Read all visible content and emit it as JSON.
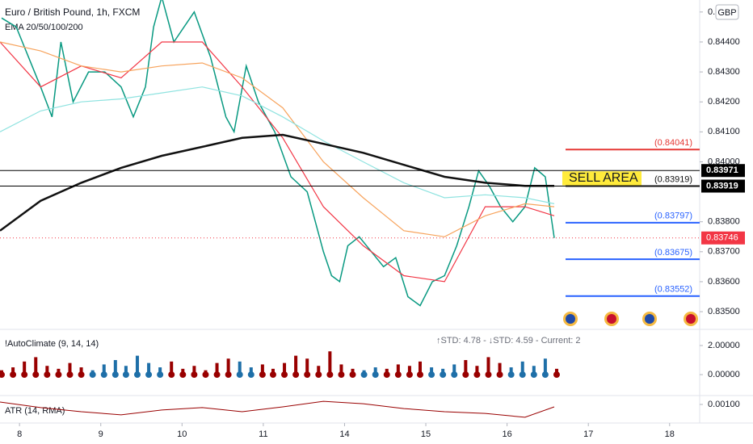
{
  "chart_data": [
    {
      "type": "line",
      "title": "Euro / British Pound, 1h, FXCM",
      "subtitle": "EMA 20/50/100/200",
      "currency": "GBP",
      "xlim": [
        -0.24,
        8.37
      ],
      "ylim": [
        0.83449,
        0.8454
      ],
      "yticks": [
        {
          "value": 0.845,
          "label": "0."
        },
        {
          "value": 0.844,
          "label": "0.84400"
        },
        {
          "value": 0.843,
          "label": "0.84300"
        },
        {
          "value": 0.842,
          "label": "0.84200"
        },
        {
          "value": 0.841,
          "label": "0.84100"
        },
        {
          "value": 0.84,
          "label": "0.84000"
        },
        {
          "value": 0.838,
          "label": "0.83800"
        },
        {
          "value": 0.837,
          "label": "0.83700"
        },
        {
          "value": 0.836,
          "label": "0.83600"
        },
        {
          "value": 0.835,
          "label": "0.83500"
        }
      ],
      "series": [
        {
          "color": "#089981",
          "x": [
            -0.22,
            -0.04,
            0.26,
            0.4,
            0.51,
            0.66,
            0.85,
            1.05,
            1.25,
            1.4,
            1.55,
            1.65,
            1.75,
            1.9,
            2.15,
            2.35,
            2.54,
            2.64,
            2.79,
            2.94,
            3.14,
            3.34,
            3.54,
            3.64,
            3.74,
            3.84,
            3.94,
            4.04,
            4.18,
            4.33,
            4.48,
            4.63,
            4.78,
            4.93,
            5.08,
            5.23,
            5.38,
            5.53,
            5.65,
            5.78,
            5.92,
            6.07,
            6.22,
            6.34,
            6.47,
            6.58
          ],
          "values": [
            0.8448,
            0.8445,
            0.8425,
            0.8415,
            0.844,
            0.842,
            0.843,
            0.843,
            0.8425,
            0.8415,
            0.8425,
            0.8445,
            0.8455,
            0.844,
            0.845,
            0.8435,
            0.8415,
            0.841,
            0.8432,
            0.842,
            0.841,
            0.8395,
            0.839,
            0.838,
            0.837,
            0.8362,
            0.836,
            0.8372,
            0.8375,
            0.837,
            0.8365,
            0.8368,
            0.8355,
            0.8352,
            0.836,
            0.8362,
            0.8372,
            0.8385,
            0.8397,
            0.8392,
            0.8385,
            0.838,
            0.8385,
            0.8398,
            0.8395,
            0.83746
          ]
        },
        {
          "color": "#f23645",
          "x": [
            -0.24,
            0.26,
            0.76,
            1.25,
            1.75,
            2.25,
            2.74,
            3.24,
            3.74,
            4.23,
            4.73,
            5.23,
            5.73,
            6.22,
            6.58
          ],
          "values": [
            0.844,
            0.8425,
            0.8432,
            0.8428,
            0.844,
            0.844,
            0.8425,
            0.8408,
            0.8385,
            0.8372,
            0.8362,
            0.836,
            0.8385,
            0.8385,
            0.8382
          ]
        },
        {
          "color": "#f7a35c",
          "x": [
            -0.24,
            0.26,
            0.76,
            1.25,
            1.75,
            2.25,
            2.74,
            3.24,
            3.74,
            4.23,
            4.73,
            5.23,
            5.73,
            6.22,
            6.58
          ],
          "values": [
            0.844,
            0.8437,
            0.8432,
            0.843,
            0.8432,
            0.8433,
            0.8428,
            0.8418,
            0.84,
            0.8388,
            0.8377,
            0.8375,
            0.8382,
            0.8386,
            0.8385
          ]
        },
        {
          "color": "#8fe3e0",
          "x": [
            -0.24,
            0.26,
            0.76,
            1.25,
            1.75,
            2.25,
            2.74,
            3.24,
            3.74,
            4.23,
            4.73,
            5.23,
            5.73,
            6.22,
            6.58
          ],
          "values": [
            0.841,
            0.8417,
            0.842,
            0.8421,
            0.8423,
            0.8425,
            0.8422,
            0.8415,
            0.8407,
            0.84,
            0.8393,
            0.8388,
            0.8389,
            0.8388,
            0.8386
          ]
        },
        {
          "color": "#111111",
          "x": [
            -0.24,
            0.26,
            0.76,
            1.25,
            1.75,
            2.25,
            2.74,
            3.24,
            3.74,
            4.23,
            4.73,
            5.23,
            5.73,
            6.22,
            6.58
          ],
          "values": [
            0.8377,
            0.8387,
            0.8393,
            0.8398,
            0.8402,
            0.8405,
            0.8408,
            0.8409,
            0.8406,
            0.8403,
            0.8399,
            0.8395,
            0.8393,
            0.8392,
            0.8392
          ]
        }
      ],
      "hlines": [
        0.83971,
        0.83919
      ],
      "last_price": 0.83746,
      "levels": [
        {
          "value": 0.84041,
          "label": "(0.84041)",
          "color": "#e53935"
        },
        {
          "value": 0.83919,
          "label": "(0.83919)",
          "color": "#111111"
        },
        {
          "value": 0.83797,
          "label": "(0.83797)",
          "color": "#2962ff"
        },
        {
          "value": 0.83675,
          "label": "(0.83675)",
          "color": "#2962ff"
        },
        {
          "value": 0.83552,
          "label": "(0.83552)",
          "color": "#2962ff"
        }
      ],
      "annotation": "SELL AREA"
    },
    {
      "type": "bar",
      "title": "!AutoClimate (9, 14, 14)",
      "subtitle": "↑STD: 4.78 - ↓STD: 4.59 - Current: 2",
      "xlim": [
        -0.24,
        8.37
      ],
      "ylim": [
        -1.44,
        3.0
      ],
      "yticks": [
        {
          "value": 2,
          "label": "2.00000"
        },
        {
          "value": 0,
          "label": "0.00000"
        }
      ],
      "x": [
        -0.22,
        -0.08,
        0.06,
        0.2,
        0.34,
        0.48,
        0.62,
        0.76,
        0.9,
        1.04,
        1.18,
        1.31,
        1.45,
        1.59,
        1.73,
        1.87,
        2.01,
        2.15,
        2.29,
        2.43,
        2.57,
        2.71,
        2.85,
        2.99,
        3.12,
        3.26,
        3.4,
        3.54,
        3.68,
        3.82,
        3.96,
        4.1,
        4.24,
        4.38,
        4.52,
        4.66,
        4.8,
        4.93,
        5.07,
        5.21,
        5.35,
        5.49,
        5.63,
        5.77,
        5.91,
        6.05,
        6.19,
        6.33,
        6.47,
        6.61
      ],
      "values": [
        0.3,
        0.5,
        0.9,
        1.2,
        0.6,
        0.4,
        0.8,
        0.5,
        0.3,
        0.7,
        1.0,
        0.6,
        1.3,
        0.8,
        0.5,
        0.9,
        0.4,
        0.6,
        0.3,
        0.8,
        1.1,
        0.9,
        0.5,
        0.7,
        0.4,
        0.8,
        1.3,
        1.1,
        0.6,
        1.6,
        0.7,
        0.4,
        0.3,
        0.5,
        0.4,
        0.7,
        0.6,
        0.9,
        0.5,
        0.4,
        0.7,
        1.0,
        0.6,
        1.2,
        0.8,
        0.5,
        0.9,
        0.6,
        1.1,
        0.4
      ],
      "colors": [
        "#990000",
        "#990000",
        "#990000",
        "#990000",
        "#990000",
        "#990000",
        "#990000",
        "#990000",
        "#1e6fa8",
        "#1e6fa8",
        "#1e6fa8",
        "#1e6fa8",
        "#1e6fa8",
        "#1e6fa8",
        "#1e6fa8",
        "#990000",
        "#990000",
        "#990000",
        "#990000",
        "#990000",
        "#990000",
        "#1e6fa8",
        "#1e6fa8",
        "#990000",
        "#990000",
        "#990000",
        "#990000",
        "#990000",
        "#990000",
        "#990000",
        "#990000",
        "#990000",
        "#1e6fa8",
        "#1e6fa8",
        "#990000",
        "#990000",
        "#990000",
        "#990000",
        "#1e6fa8",
        "#1e6fa8",
        "#1e6fa8",
        "#990000",
        "#990000",
        "#990000",
        "#990000",
        "#1e6fa8",
        "#1e6fa8",
        "#1e6fa8",
        "#1e6fa8",
        "#990000"
      ]
    },
    {
      "type": "line",
      "title": "ATR (14, RMA)",
      "color": "#990000",
      "xlim": [
        -0.24,
        8.37
      ],
      "ylim": [
        0.0003,
        0.0013
      ],
      "yticks": [
        {
          "value": 0.001,
          "label": "0.00100"
        }
      ],
      "xticks": [
        {
          "value": 0,
          "label": "8"
        },
        {
          "value": 1,
          "label": "9"
        },
        {
          "value": 2,
          "label": "10"
        },
        {
          "value": 3,
          "label": "11"
        },
        {
          "value": 4,
          "label": "14"
        },
        {
          "value": 5,
          "label": "15"
        },
        {
          "value": 6,
          "label": "16"
        },
        {
          "value": 7,
          "label": "17"
        },
        {
          "value": 8,
          "label": "18"
        }
      ],
      "x": [
        -0.24,
        0.26,
        0.76,
        1.25,
        1.75,
        2.25,
        2.74,
        3.24,
        3.74,
        4.23,
        4.73,
        5.23,
        5.73,
        6.22,
        6.58
      ],
      "values": [
        0.0011,
        0.00087,
        0.0007,
        0.00057,
        0.00077,
        0.00087,
        0.0007,
        0.0009,
        0.00113,
        0.00103,
        0.00083,
        0.0007,
        0.00063,
        0.00047,
        0.0009
      ]
    }
  ]
}
